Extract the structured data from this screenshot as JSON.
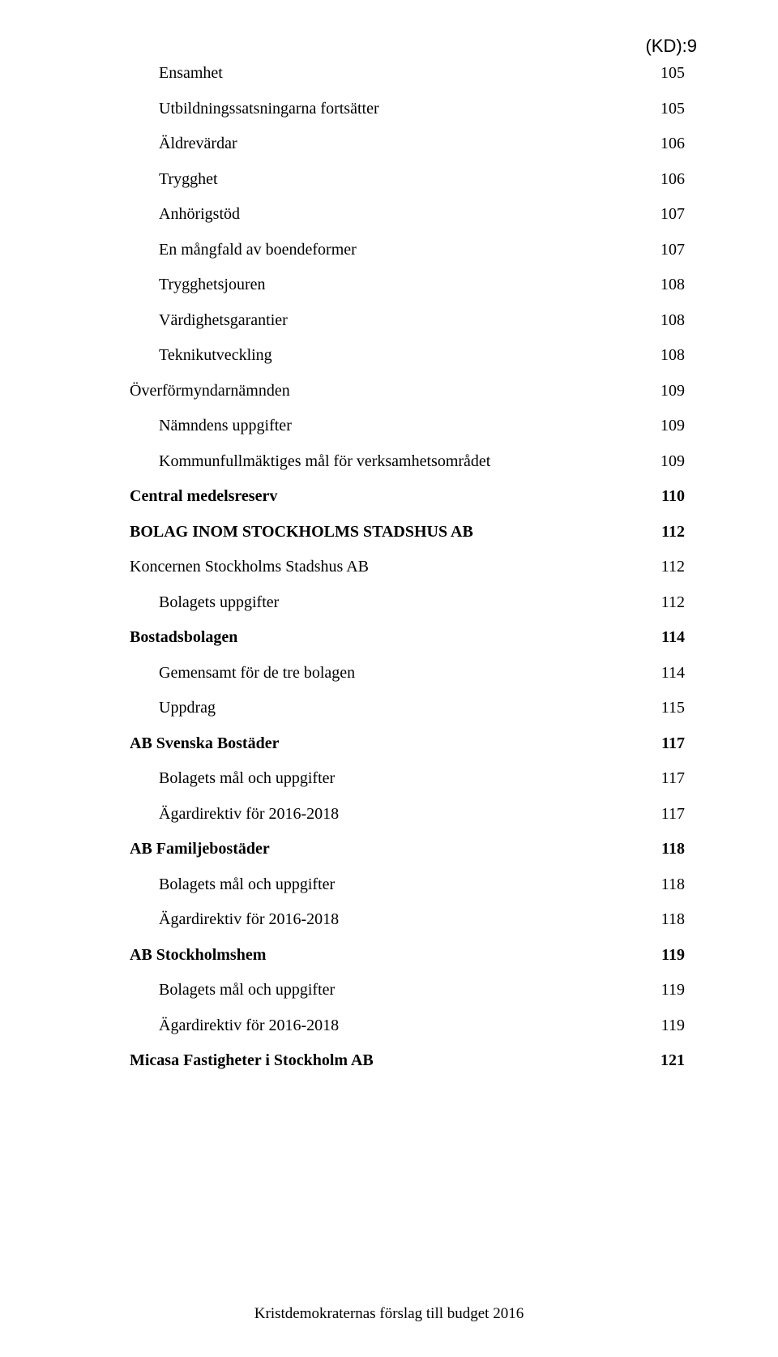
{
  "corner_label": "(KD):9",
  "footer": "Kristdemokraternas förslag till budget 2016",
  "toc": [
    {
      "label": "Ensamhet",
      "page": "105",
      "level": 2
    },
    {
      "label": "Utbildningssatsningarna fortsätter",
      "page": "105",
      "level": 2
    },
    {
      "label": "Äldrevärdar",
      "page": "106",
      "level": 2
    },
    {
      "label": "Trygghet",
      "page": "106",
      "level": 2
    },
    {
      "label": "Anhörigstöd",
      "page": "107",
      "level": 2
    },
    {
      "label": "En mångfald av boendeformer",
      "page": "107",
      "level": 2
    },
    {
      "label": "Trygghetsjouren",
      "page": "108",
      "level": 2
    },
    {
      "label": "Värdighetsgarantier",
      "page": "108",
      "level": 2
    },
    {
      "label": "Teknikutveckling",
      "page": "108",
      "level": 2
    },
    {
      "label": "Överförmyndarnämnden",
      "page": "109",
      "level": 1
    },
    {
      "label": "Nämndens uppgifter",
      "page": "109",
      "level": 2
    },
    {
      "label": "Kommunfullmäktiges mål för verksamhetsområdet",
      "page": "109",
      "level": 2
    },
    {
      "label": "Central medelsreserv",
      "page": "110",
      "level": 0
    },
    {
      "label": "BOLAG INOM STOCKHOLMS STADSHUS AB",
      "page": "112",
      "level": 0
    },
    {
      "label": "Koncernen Stockholms Stadshus AB",
      "page": "112",
      "level": 1
    },
    {
      "label": "Bolagets uppgifter",
      "page": "112",
      "level": 2
    },
    {
      "label": "Bostadsbolagen",
      "page": "114",
      "level": 0
    },
    {
      "label": "Gemensamt för de tre bolagen",
      "page": "114",
      "level": 2
    },
    {
      "label": "Uppdrag",
      "page": "115",
      "level": 2
    },
    {
      "label": "AB Svenska Bostäder",
      "page": "117",
      "level": 0
    },
    {
      "label": "Bolagets mål och uppgifter",
      "page": "117",
      "level": 2
    },
    {
      "label": "Ägardirektiv för 2016-2018",
      "page": "117",
      "level": 2
    },
    {
      "label": "AB Familjebostäder",
      "page": "118",
      "level": 0
    },
    {
      "label": "Bolagets mål och uppgifter",
      "page": "118",
      "level": 2
    },
    {
      "label": "Ägardirektiv för 2016-2018",
      "page": "118",
      "level": 2
    },
    {
      "label": "AB Stockholmshem",
      "page": "119",
      "level": 0
    },
    {
      "label": "Bolagets mål och uppgifter",
      "page": "119",
      "level": 2
    },
    {
      "label": "Ägardirektiv för 2016-2018",
      "page": "119",
      "level": 2
    },
    {
      "label": "Micasa Fastigheter i Stockholm AB",
      "page": "121",
      "level": 0
    }
  ]
}
